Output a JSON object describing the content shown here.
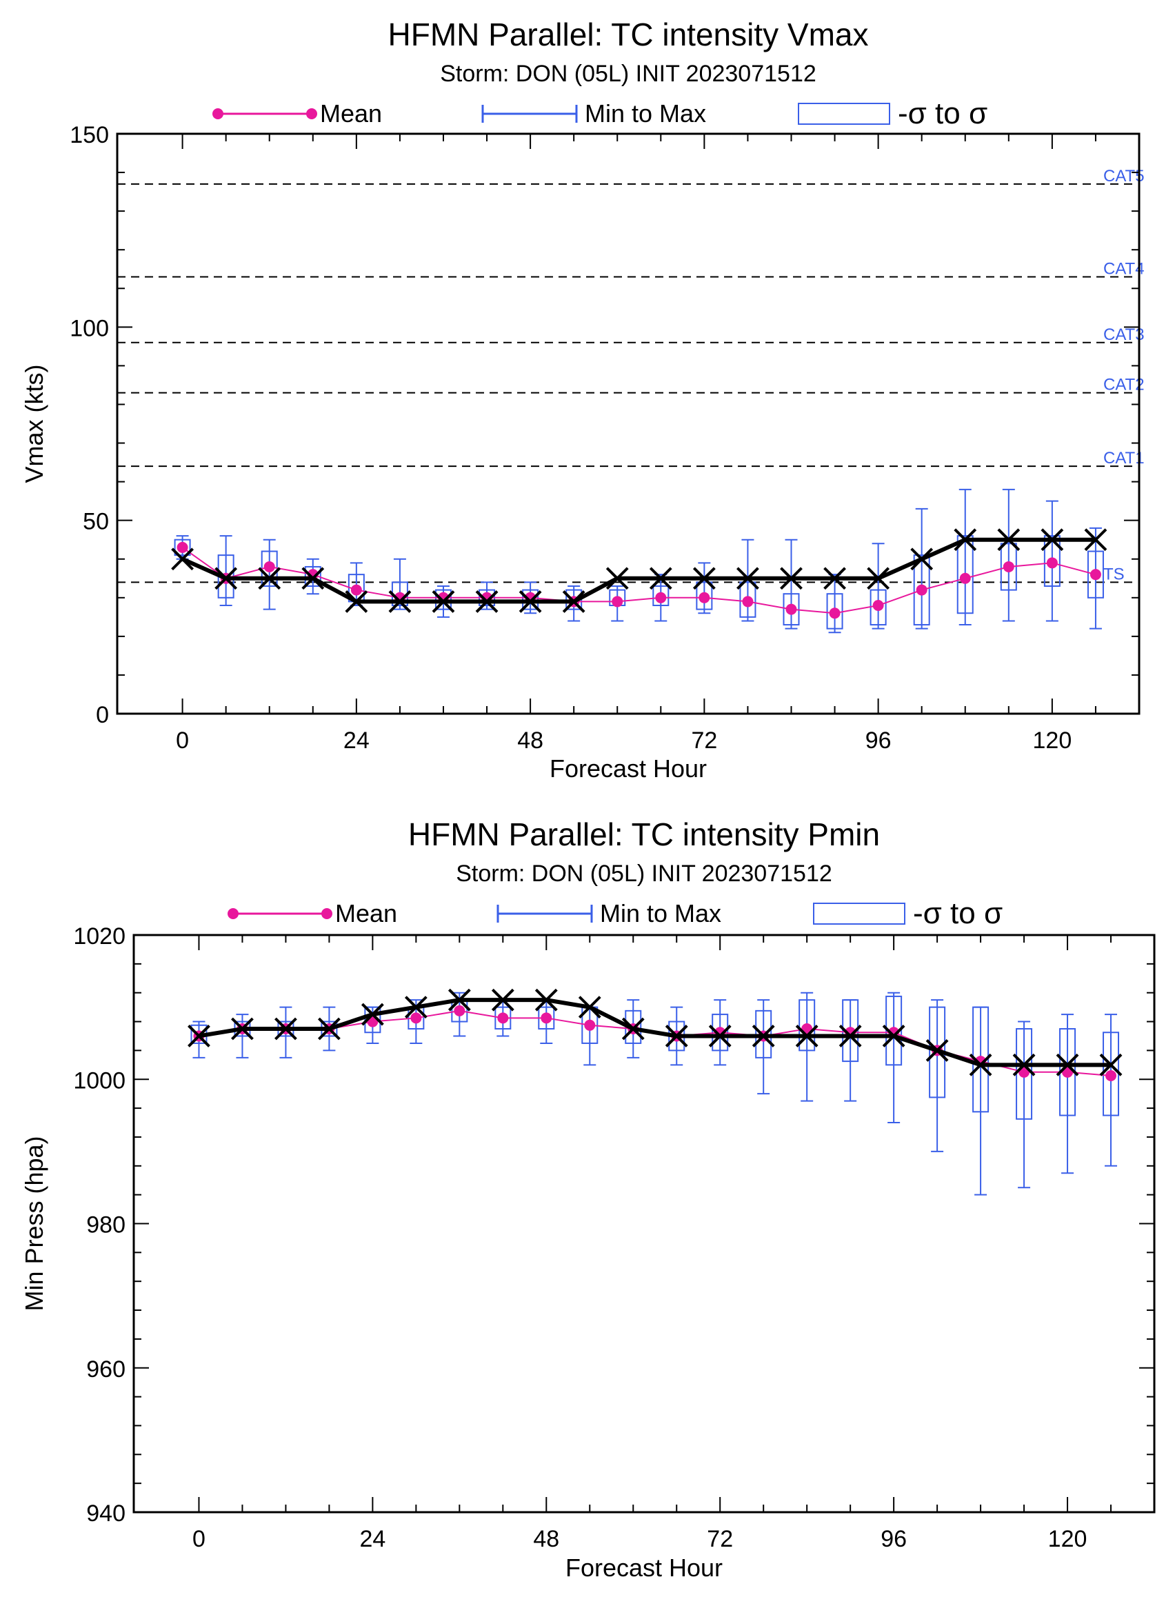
{
  "chart_data": [
    {
      "type": "line",
      "title": "HFMN Parallel: TC intensity Vmax",
      "subtitle": "Storm: DON (05L) INIT 2023071512",
      "xlabel": "Forecast Hour",
      "ylabel": "Vmax (kts)",
      "xlim": [
        -9,
        132
      ],
      "ylim": [
        0,
        150
      ],
      "xticks": [
        "0",
        "24",
        "48",
        "72",
        "96",
        "120"
      ],
      "yticks": [
        "0",
        "50",
        "100",
        "150"
      ],
      "legend": {
        "placement": "top",
        "entries": [
          "Mean",
          "Min to Max",
          "-σ to σ"
        ]
      },
      "x": [
        0,
        6,
        12,
        18,
        24,
        30,
        36,
        42,
        48,
        54,
        60,
        66,
        72,
        78,
        84,
        90,
        96,
        102,
        108,
        114,
        120,
        126
      ],
      "series": [
        {
          "name": "Mean",
          "values": [
            43,
            35,
            38,
            36,
            32,
            30,
            30,
            30,
            30,
            29,
            29,
            30,
            30,
            29,
            27,
            26,
            28,
            32,
            35,
            38,
            39,
            36
          ]
        },
        {
          "name": "Min to Max",
          "min": [
            40,
            28,
            27,
            31,
            28,
            27,
            25,
            27,
            26,
            24,
            24,
            24,
            26,
            24,
            22,
            21,
            22,
            22,
            23,
            24,
            24,
            22
          ],
          "max": [
            46,
            46,
            45,
            40,
            39,
            40,
            33,
            34,
            34,
            33,
            33,
            36,
            39,
            45,
            45,
            36,
            44,
            53,
            58,
            58,
            55,
            48
          ]
        },
        {
          "name": "-σ to σ",
          "low": [
            41,
            30,
            33,
            33,
            29,
            28,
            27,
            28,
            27,
            27,
            28,
            28,
            27,
            25,
            23,
            22,
            23,
            23,
            26,
            32,
            33,
            30
          ],
          "high": [
            45,
            41,
            42,
            38,
            36,
            34,
            32,
            32,
            32,
            32,
            32,
            33,
            34,
            34,
            31,
            31,
            32,
            41,
            46,
            44,
            46,
            42
          ]
        },
        {
          "name": "",
          "values": [
            40,
            35,
            35,
            35,
            29,
            29,
            29,
            29,
            29,
            29,
            35,
            35,
            35,
            35,
            35,
            35,
            35,
            40,
            45,
            45,
            45,
            45
          ]
        }
      ],
      "reference_lines": [
        {
          "label": "CAT5",
          "value": 137
        },
        {
          "label": "CAT4",
          "value": 113
        },
        {
          "label": "CAT3",
          "value": 96
        },
        {
          "label": "CAT2",
          "value": 83
        },
        {
          "label": "CAT1",
          "value": 64
        },
        {
          "label": "TS",
          "value": 34
        }
      ]
    },
    {
      "type": "line",
      "title": "HFMN Parallel: TC intensity Pmin",
      "subtitle": "Storm: DON (05L) INIT 2023071512",
      "xlabel": "Forecast Hour",
      "ylabel": "Min Press (hpa)",
      "xlim": [
        -9,
        132
      ],
      "ylim": [
        940,
        1020
      ],
      "xticks": [
        "0",
        "24",
        "48",
        "72",
        "96",
        "120"
      ],
      "yticks": [
        "940",
        "960",
        "980",
        "1000",
        "1020"
      ],
      "legend": {
        "placement": "top",
        "entries": [
          "Mean",
          "Min to Max",
          "-σ to σ"
        ]
      },
      "x": [
        0,
        6,
        12,
        18,
        24,
        30,
        36,
        42,
        48,
        54,
        60,
        66,
        72,
        78,
        84,
        90,
        96,
        102,
        108,
        114,
        120,
        126
      ],
      "series": [
        {
          "name": "Mean",
          "values": [
            1006,
            1007,
            1007,
            1007,
            1008,
            1008.5,
            1009.5,
            1008.5,
            1008.5,
            1007.5,
            1007,
            1006,
            1006.5,
            1006,
            1007,
            1006.5,
            1006.5,
            1004,
            1002.5,
            1001,
            1001,
            1000.5
          ]
        },
        {
          "name": "Min to Max",
          "min": [
            1003,
            1003,
            1003,
            1004,
            1005,
            1005,
            1006,
            1006,
            1005,
            1002,
            1003,
            1002,
            1002,
            998,
            997,
            997,
            994,
            990,
            984,
            985,
            987,
            988
          ],
          "max": [
            1008,
            1009,
            1010,
            1010,
            1010,
            1011,
            1012,
            1011,
            1011,
            1010,
            1011,
            1010,
            1011,
            1011,
            1012,
            1011,
            1012,
            1011,
            1010,
            1008,
            1009,
            1009
          ]
        },
        {
          "name": "-σ to σ",
          "low": [
            1005,
            1006,
            1006,
            1006,
            1006.5,
            1007,
            1008,
            1007,
            1007,
            1005,
            1005,
            1004,
            1004,
            1003,
            1004,
            1002.5,
            1002,
            997.5,
            995.5,
            994.5,
            995,
            995
          ],
          "high": [
            1007.5,
            1008,
            1008,
            1008,
            1010,
            1010,
            1011,
            1010,
            1010,
            1010,
            1009.5,
            1008,
            1009,
            1009.5,
            1011,
            1011,
            1011.5,
            1010,
            1010,
            1007,
            1007,
            1006.5
          ]
        },
        {
          "name": "",
          "values": [
            1006,
            1007,
            1007,
            1007,
            1009,
            1010,
            1011,
            1011,
            1011,
            1010,
            1007,
            1006,
            1006,
            1006,
            1006,
            1006,
            1006,
            1004,
            1002,
            1002,
            1002,
            1002
          ]
        }
      ]
    }
  ]
}
